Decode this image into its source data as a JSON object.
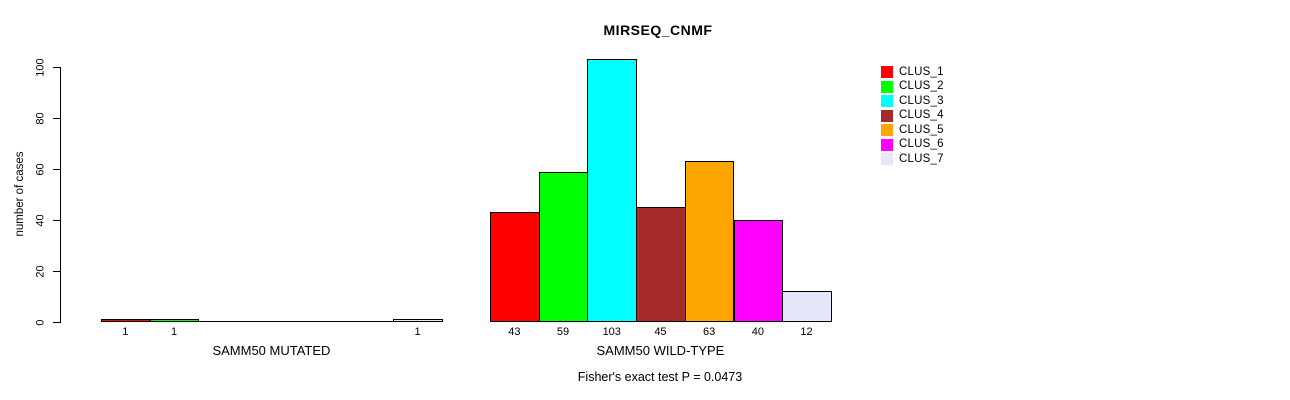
{
  "title": "MIRSEQ_CNMF",
  "ylabel": "number of cases",
  "footer": "Fisher's exact test P = 0.0473",
  "chart_data": {
    "type": "bar",
    "title": "MIRSEQ_CNMF",
    "xlabel": "",
    "ylabel": "number of cases",
    "ylim": [
      0,
      105
    ],
    "yticks": [
      0,
      20,
      40,
      60,
      80,
      100
    ],
    "grid": false,
    "legend_position": "top-right",
    "bar_border_color": "#000000",
    "categories": [
      "SAMM50 MUTATED",
      "SAMM50 WILD-TYPE"
    ],
    "series": [
      {
        "name": "CLUS_1",
        "color": "#FF0000",
        "values": [
          1,
          43
        ]
      },
      {
        "name": "CLUS_2",
        "color": "#00FF00",
        "values": [
          1,
          59
        ]
      },
      {
        "name": "CLUS_3",
        "color": "#00FFFF",
        "values": [
          0,
          103
        ]
      },
      {
        "name": "CLUS_4",
        "color": "#A52A2A",
        "values": [
          0,
          45
        ]
      },
      {
        "name": "CLUS_5",
        "color": "#FFA500",
        "values": [
          0,
          63
        ]
      },
      {
        "name": "CLUS_6",
        "color": "#FF00FF",
        "values": [
          0,
          40
        ]
      },
      {
        "name": "CLUS_7",
        "color": "#E6E6FA",
        "values": [
          1,
          12
        ]
      }
    ],
    "value_labels_shown_when": "value > 0",
    "annotation": "Fisher's exact test P = 0.0473"
  }
}
